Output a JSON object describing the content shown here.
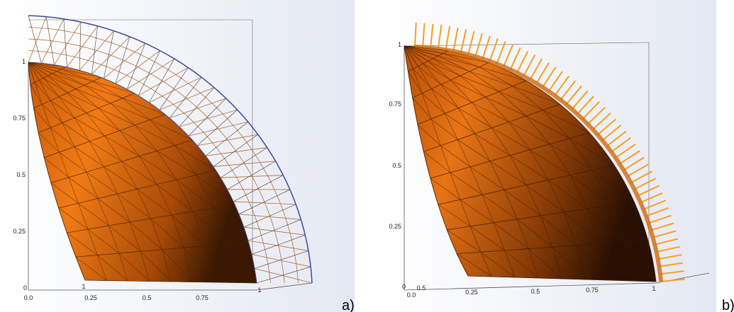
{
  "panels": [
    {
      "label": "a)",
      "axis_labels": [
        "1",
        "0.75",
        "0.5",
        "0.25",
        "0",
        "0.0",
        "1",
        "0.25",
        "0.5",
        "0.75",
        "1"
      ]
    },
    {
      "label": "b)",
      "axis_labels": [
        "1",
        "0.75",
        "0.5",
        "0.25",
        "0",
        "0.0",
        "0.5",
        "0.25",
        "0.5",
        "0.75",
        "1"
      ]
    }
  ]
}
